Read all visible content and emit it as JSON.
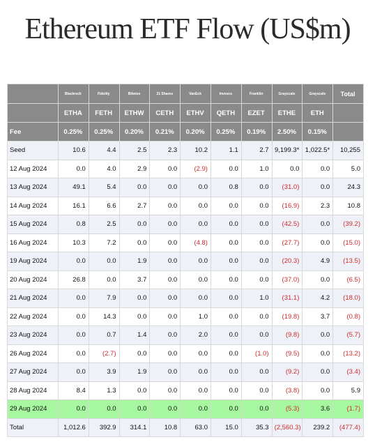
{
  "title": "Ethereum ETF Flow (US$m)",
  "columns": [
    {
      "issuer": "Blackrock",
      "ticker": "ETHA",
      "fee": "0.25%"
    },
    {
      "issuer": "Fidelity",
      "ticker": "FETH",
      "fee": "0.25%"
    },
    {
      "issuer": "Bitwise",
      "ticker": "ETHW",
      "fee": "0.20%"
    },
    {
      "issuer": "21 Shares",
      "ticker": "CETH",
      "fee": "0.21%"
    },
    {
      "issuer": "VanEck",
      "ticker": "ETHV",
      "fee": "0.20%"
    },
    {
      "issuer": "Invesco",
      "ticker": "QETH",
      "fee": "0.25%"
    },
    {
      "issuer": "Franklin",
      "ticker": "EZET",
      "fee": "0.19%"
    },
    {
      "issuer": "Grayscale",
      "ticker": "ETHE",
      "fee": "2.50%"
    },
    {
      "issuer": "Grayscale",
      "ticker": "ETH",
      "fee": "0.15%"
    }
  ],
  "total_header": "Total",
  "fee_label": "Fee",
  "rows": [
    {
      "label": "Seed",
      "values": [
        "10.6",
        "4.4",
        "2.5",
        "2.3",
        "10.2",
        "1.1",
        "2.7",
        "9,199.3*",
        "1,022.5*",
        "10,255"
      ]
    },
    {
      "label": "12 Aug 2024",
      "values": [
        "0.0",
        "4.0",
        "2.9",
        "0.0",
        "(2.9)",
        "0.0",
        "1.0",
        "0.0",
        "0.0",
        "5.0"
      ]
    },
    {
      "label": "13 Aug 2024",
      "values": [
        "49.1",
        "5.4",
        "0.0",
        "0.0",
        "0.0",
        "0.8",
        "0.0",
        "(31.0)",
        "0.0",
        "24.3"
      ]
    },
    {
      "label": "14 Aug 2024",
      "values": [
        "16.1",
        "6.6",
        "2.7",
        "0.0",
        "0.0",
        "0.0",
        "0.0",
        "(16.9)",
        "2.3",
        "10.8"
      ]
    },
    {
      "label": "15 Aug 2024",
      "values": [
        "0.8",
        "2.5",
        "0.0",
        "0.0",
        "0.0",
        "0.0",
        "0.0",
        "(42.5)",
        "0.0",
        "(39.2)"
      ]
    },
    {
      "label": "16 Aug 2024",
      "values": [
        "10.3",
        "7.2",
        "0.0",
        "0.0",
        "(4.8)",
        "0.0",
        "0.0",
        "(27.7)",
        "0.0",
        "(15.0)"
      ]
    },
    {
      "label": "19 Aug 2024",
      "values": [
        "0.0",
        "0.0",
        "1.9",
        "0.0",
        "0.0",
        "0.0",
        "0.0",
        "(20.3)",
        "4.9",
        "(13.5)"
      ]
    },
    {
      "label": "20 Aug 2024",
      "values": [
        "26.8",
        "0.0",
        "3.7",
        "0.0",
        "0.0",
        "0.0",
        "0.0",
        "(37.0)",
        "0.0",
        "(6.5)"
      ]
    },
    {
      "label": "21 Aug 2024",
      "values": [
        "0.0",
        "7.9",
        "0.0",
        "0.0",
        "0.0",
        "0.0",
        "1.0",
        "(31.1)",
        "4.2",
        "(18.0)"
      ]
    },
    {
      "label": "22 Aug 2024",
      "values": [
        "0.0",
        "14.3",
        "0.0",
        "0.0",
        "1.0",
        "0.0",
        "0.0",
        "(19.8)",
        "3.7",
        "(0.8)"
      ]
    },
    {
      "label": "23 Aug 2024",
      "values": [
        "0.0",
        "0.7",
        "1.4",
        "0.0",
        "2.0",
        "0.0",
        "0.0",
        "(9.8)",
        "0.0",
        "(5.7)"
      ]
    },
    {
      "label": "26 Aug 2024",
      "values": [
        "0.0",
        "(2.7)",
        "0.0",
        "0.0",
        "0.0",
        "0.0",
        "(1.0)",
        "(9.5)",
        "0.0",
        "(13.2)"
      ]
    },
    {
      "label": "27 Aug 2024",
      "values": [
        "0.0",
        "3.9",
        "1.9",
        "0.0",
        "0.0",
        "0.0",
        "0.0",
        "(9.2)",
        "0.0",
        "(3.4)"
      ]
    },
    {
      "label": "28 Aug 2024",
      "values": [
        "8.4",
        "1.3",
        "0.0",
        "0.0",
        "0.0",
        "0.0",
        "0.0",
        "(3.8)",
        "0.0",
        "5.9"
      ]
    },
    {
      "label": "29 Aug 2024",
      "values": [
        "0.0",
        "0.0",
        "0.0",
        "0.0",
        "0.0",
        "0.0",
        "0.0",
        "(5.3)",
        "3.6",
        "(1.7)"
      ],
      "highlight": true
    },
    {
      "label": "Total",
      "values": [
        "1,012.6",
        "392.9",
        "314.1",
        "10.8",
        "63.0",
        "15.0",
        "35.3",
        "(2,560.3)",
        "239.2",
        "(477.4)"
      ],
      "total": true
    }
  ],
  "colors": {
    "header_bg": "#8a8a8a",
    "alt_row_bg": "#eef1f8",
    "highlight_bg": "#a7f7a0",
    "negative": "#d12b2b"
  }
}
